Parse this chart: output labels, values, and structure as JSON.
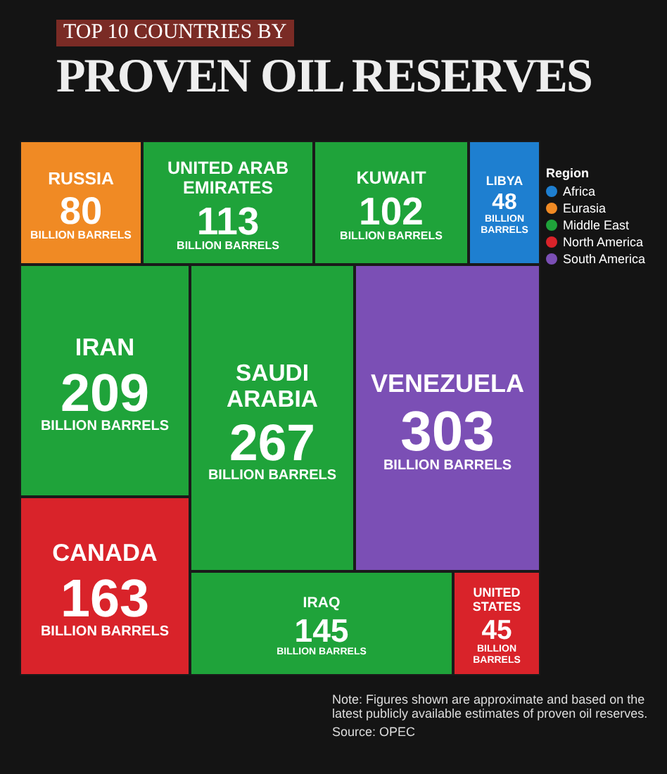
{
  "chart_data": {
    "type": "other",
    "subtitle": "TOP 10 COUNTRIES BY",
    "title": "PROVEN OIL RESERVES",
    "legend_title": "Region",
    "legend": "top right",
    "categories": [
      "RUSSIA",
      "UNITED ARAB EMIRATES",
      "KUWAIT",
      "LIBYA",
      "IRAN",
      "CANADA",
      "SAUDI ARABIA",
      "VENEZUELA",
      "IRAQ",
      "UNITED STATES"
    ],
    "series": [
      {
        "name": "Africa",
        "color": "#1e7fd0",
        "values": [
          null,
          null,
          null,
          48,
          null,
          null,
          null,
          null,
          null,
          null
        ]
      },
      {
        "name": "Eurasia",
        "color": "#f08a24",
        "values": [
          80,
          null,
          null,
          null,
          null,
          null,
          null,
          null,
          null,
          null
        ]
      },
      {
        "name": "Middle East",
        "color": "#1fa33a",
        "values": [
          null,
          113,
          102,
          null,
          209,
          null,
          267,
          null,
          145,
          null
        ]
      },
      {
        "name": "North America",
        "color": "#d9232a",
        "values": [
          null,
          null,
          null,
          null,
          null,
          163,
          null,
          null,
          null,
          45
        ]
      },
      {
        "name": "South America",
        "color": "#7b4fb5",
        "values": [
          null,
          null,
          null,
          null,
          null,
          null,
          null,
          303,
          null,
          null
        ]
      }
    ],
    "ylabel": "BILLION BARRELS",
    "data_labels": true,
    "annotations": [
      "Note: Figures shown are approximate and based on the latest publicly available estimates of proven oil reserves.",
      "Source: OPEC"
    ]
  }
}
